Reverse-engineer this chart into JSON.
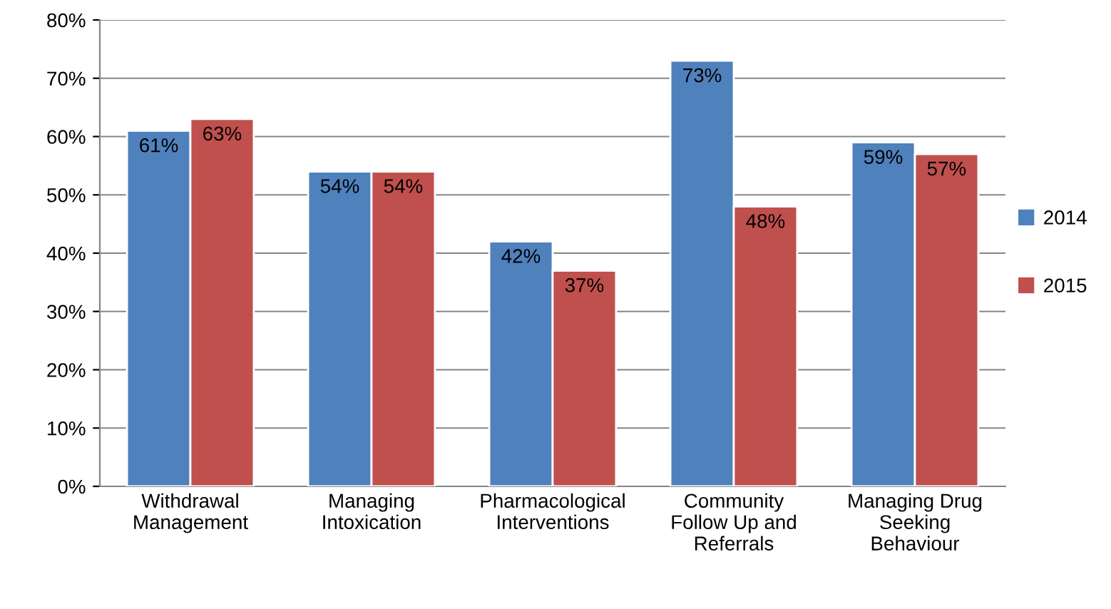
{
  "chart_data": {
    "type": "bar",
    "categories": [
      "Withdrawal\nManagement",
      "Managing\nIntoxication",
      "Pharmacological\nInterventions",
      "Community\nFollow Up and\nReferrals",
      "Managing Drug\nSeeking\nBehaviour"
    ],
    "series": [
      {
        "name": "2014",
        "color": "#4f81bd",
        "values": [
          61,
          54,
          42,
          73,
          59
        ],
        "value_labels": [
          "61%",
          "54%",
          "42%",
          "73%",
          "59%"
        ]
      },
      {
        "name": "2015",
        "color": "#c0504d",
        "values": [
          63,
          54,
          37,
          48,
          57
        ],
        "value_labels": [
          "63%",
          "54%",
          "37%",
          "48%",
          "57%"
        ]
      }
    ],
    "ylim": [
      0,
      80
    ],
    "yticks": [
      {
        "value": 0,
        "label": "0%"
      },
      {
        "value": 10,
        "label": "10%"
      },
      {
        "value": 20,
        "label": "20%"
      },
      {
        "value": 30,
        "label": "30%"
      },
      {
        "value": 40,
        "label": "40%"
      },
      {
        "value": 50,
        "label": "50%"
      },
      {
        "value": 60,
        "label": "60%"
      },
      {
        "value": 70,
        "label": "70%"
      },
      {
        "value": 80,
        "label": "80%"
      }
    ],
    "grid": "y",
    "legend": "right"
  }
}
